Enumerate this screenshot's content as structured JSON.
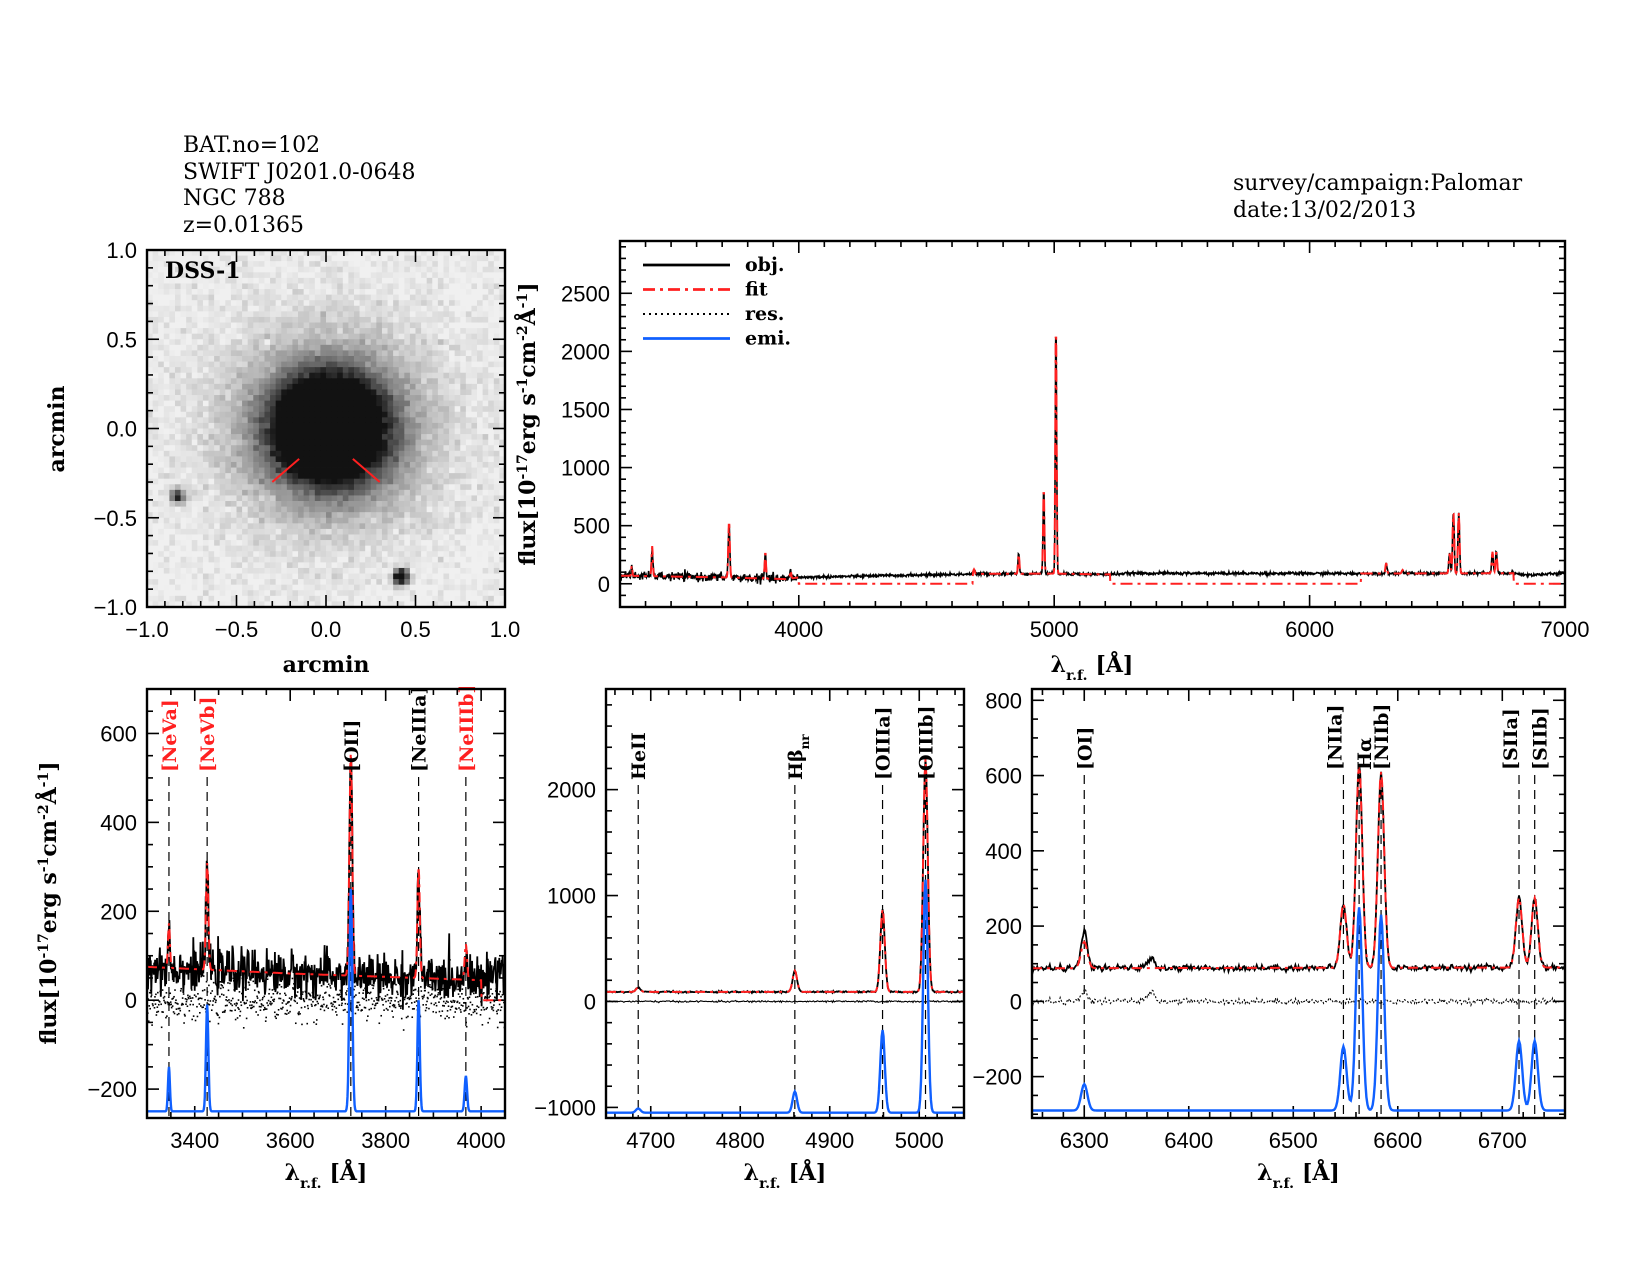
{
  "header": {
    "bat_no": "BAT.no=102",
    "swift_name": "SWIFT J0201.0-0648",
    "galaxy_name": "NGC 788",
    "redshift": "z=0.01365",
    "survey": "survey/campaign:Palomar",
    "date": "date:13/02/2013"
  },
  "colors": {
    "obj": "#000000",
    "fit": "#ff2020",
    "res": "#000000",
    "emi": "#1060ff",
    "red_label": "#ff2020"
  },
  "image_panel": {
    "label": "DSS-1",
    "xlabel": "arcmin",
    "ylabel": "arcmin",
    "xlim": [
      -1.0,
      1.0
    ],
    "ylim": [
      -1.0,
      1.0
    ],
    "xticks": [
      "-1.0",
      "-0.5",
      "0.0",
      "0.5",
      "1.0"
    ],
    "yticks": [
      "-1.0",
      "-0.5",
      "0.0",
      "0.5",
      "1.0"
    ],
    "stars": [
      [
        -0.83,
        -0.38
      ],
      [
        0.42,
        -0.83
      ]
    ]
  },
  "ylabel_parts": {
    "base": "flux[10",
    "exp1": "-17",
    "mid": "erg s",
    "exp2": "-1",
    "mid2": "cm",
    "exp3": "-2",
    "unit": "Å",
    "exp4": "-1",
    "end": "]"
  },
  "xlabel_parts": {
    "lambda": "λ",
    "sub": "r.f.",
    "unit": "[Å]"
  },
  "legend": [
    {
      "label": "obj.",
      "style": "solid",
      "color": "#000000"
    },
    {
      "label": "fit",
      "style": "dash-dot",
      "color": "#ff2020"
    },
    {
      "label": "res.",
      "style": "dotted",
      "color": "#000000"
    },
    {
      "label": "emi.",
      "style": "solid",
      "color": "#1060ff"
    }
  ],
  "chart_data": [
    {
      "type": "line",
      "panel": "full spectrum",
      "xlim": [
        3300,
        7000
      ],
      "ylim": [
        -200,
        2950
      ],
      "xticks": [
        4000,
        5000,
        6000,
        7000
      ],
      "yticks": [
        0,
        500,
        1000,
        1500,
        2000,
        2500
      ],
      "continuum": [
        [
          3300,
          70
        ],
        [
          3700,
          55
        ],
        [
          3950,
          40
        ],
        [
          4000,
          55
        ],
        [
          4700,
          85
        ],
        [
          5000,
          88
        ],
        [
          5200,
          80
        ],
        [
          5300,
          90
        ],
        [
          6200,
          88
        ],
        [
          6800,
          90
        ],
        [
          6850,
          75
        ],
        [
          7000,
          90
        ]
      ],
      "fit_zero_ranges": [
        [
          4000,
          4680
        ],
        [
          5220,
          6200
        ],
        [
          6800,
          7000
        ]
      ],
      "lines": [
        [
          3346,
          90,
          2
        ],
        [
          3426,
          260,
          2.5
        ],
        [
          3727,
          480,
          3
        ],
        [
          3869,
          230,
          2.5
        ],
        [
          3968,
          70,
          2.5
        ],
        [
          4686,
          40,
          3
        ],
        [
          4861,
          180,
          2.5
        ],
        [
          4959,
          750,
          2.5
        ],
        [
          5007,
          2200,
          2.5
        ],
        [
          6300,
          90,
          3
        ],
        [
          6364,
          30,
          3
        ],
        [
          6548,
          170,
          3
        ],
        [
          6563,
          540,
          3
        ],
        [
          6584,
          520,
          3
        ],
        [
          6716,
          185,
          3
        ],
        [
          6731,
          185,
          3
        ]
      ]
    },
    {
      "type": "line",
      "panel": "NeV-NeIII",
      "xlim": [
        3300,
        4050
      ],
      "ylim": [
        -265,
        700
      ],
      "xticks": [
        3400,
        3600,
        3800,
        4000
      ],
      "yticks": [
        -200,
        0,
        200,
        400,
        600
      ],
      "emi_baseline": -250,
      "fit_end": 4000,
      "continuum": [
        [
          3300,
          75
        ],
        [
          3600,
          60
        ],
        [
          4000,
          45
        ],
        [
          4050,
          80
        ]
      ],
      "lines": [
        [
          3346,
          100,
          2
        ],
        [
          3426,
          240,
          2.5
        ],
        [
          3727,
          500,
          3
        ],
        [
          3869,
          250,
          2.5
        ],
        [
          3968,
          80,
          2.5
        ]
      ],
      "labels": [
        {
          "text": "[NeVa]",
          "x": 3346,
          "red": true
        },
        {
          "text": "[NeVb]",
          "x": 3426,
          "red": true
        },
        {
          "text": "[OII]",
          "x": 3727,
          "red": false
        },
        {
          "text": "[NeIIIa]",
          "x": 3869,
          "red": false
        },
        {
          "text": "[NeIIIb]",
          "x": 3968,
          "red": true
        }
      ]
    },
    {
      "type": "line",
      "panel": "Hbeta-OIII",
      "xlim": [
        4650,
        5050
      ],
      "ylim": [
        -1100,
        2950
      ],
      "xticks": [
        4700,
        4800,
        4900,
        5000
      ],
      "yticks": [
        -1000,
        0,
        1000,
        2000
      ],
      "emi_baseline": -1050,
      "continuum": [
        [
          4650,
          90
        ],
        [
          5050,
          90
        ]
      ],
      "lines": [
        [
          4686,
          40,
          2.5
        ],
        [
          4861,
          200,
          2.5
        ],
        [
          4959,
          780,
          2.5
        ],
        [
          5007,
          2200,
          2.5
        ]
      ],
      "labels": [
        {
          "text": "HeII",
          "x": 4686,
          "red": false
        },
        {
          "text": "Hβ",
          "sub": "nr",
          "x": 4861,
          "red": false
        },
        {
          "text": "[OIIIa]",
          "x": 4959,
          "red": false
        },
        {
          "text": "[OIIIb]",
          "x": 5007,
          "red": false
        }
      ]
    },
    {
      "type": "line",
      "panel": "Halpha-NII-SII",
      "xlim": [
        6250,
        6760
      ],
      "ylim": [
        -310,
        830
      ],
      "xticks": [
        6300,
        6400,
        6500,
        6600,
        6700
      ],
      "yticks": [
        -200,
        0,
        200,
        400,
        600,
        800
      ],
      "emi_baseline": -290,
      "continuum": [
        [
          6250,
          88
        ],
        [
          6760,
          90
        ]
      ],
      "lines": [
        [
          6300,
          70,
          3
        ],
        [
          6548,
          170,
          3
        ],
        [
          6563,
          540,
          3
        ],
        [
          6584,
          520,
          3
        ],
        [
          6716,
          185,
          3
        ],
        [
          6731,
          185,
          3
        ]
      ],
      "extra_obj_lines": [
        [
          6300,
          25,
          3
        ],
        [
          6364,
          30,
          3
        ]
      ],
      "labels": [
        {
          "text": "[OI]",
          "x": 6300,
          "red": false
        },
        {
          "text": "[NIIa]",
          "x": 6548,
          "red": false
        },
        {
          "text": "Hα",
          "x": 6563,
          "red": false
        },
        {
          "text": "[NIIb]",
          "x": 6584,
          "red": false
        },
        {
          "text": "[SIIa]",
          "x": 6716,
          "red": false
        },
        {
          "text": "[SIIb]",
          "x": 6731,
          "red": false
        }
      ]
    }
  ]
}
